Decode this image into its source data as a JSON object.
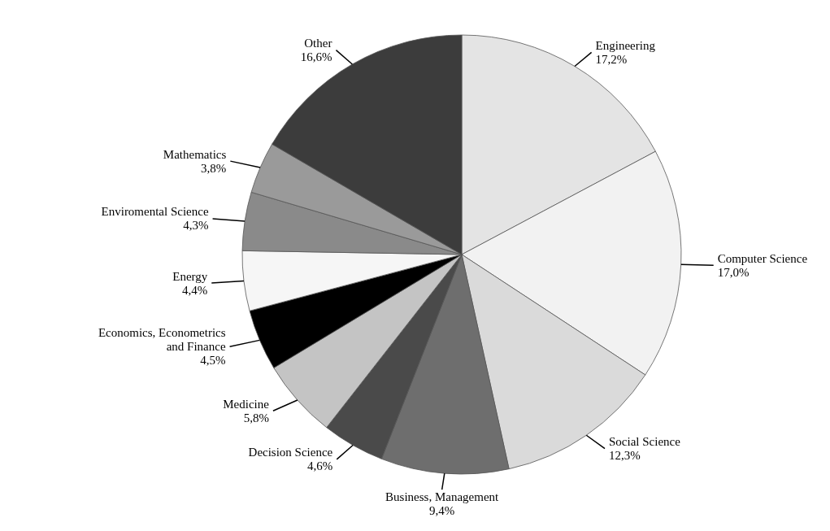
{
  "chart_data": {
    "type": "pie",
    "categories": [
      "Engineering",
      "Computer Science",
      "Social Science",
      "Business, Management",
      "Decision Science",
      "Medicine",
      "Economics, Econometrics and Finance",
      "Energy",
      "Enviromental Science",
      "Mathematics",
      "Other"
    ],
    "values": [
      17.2,
      17.0,
      12.3,
      9.4,
      4.6,
      5.8,
      4.5,
      4.4,
      4.3,
      3.8,
      16.6
    ],
    "value_labels": [
      "17,2%",
      "17,0%",
      "12,3%",
      "9,4%",
      "4,6%",
      "5,8%",
      "4,5%",
      "4,4%",
      "4,3%",
      "3,8%",
      "16,6%"
    ],
    "colors": [
      "#e4e4e4",
      "#f2f2f2",
      "#dadada",
      "#6e6e6e",
      "#4a4a4a",
      "#c4c4c4",
      "#000000",
      "#f6f6f6",
      "#8a8a8a",
      "#9a9a9a",
      "#3c3c3c"
    ]
  }
}
